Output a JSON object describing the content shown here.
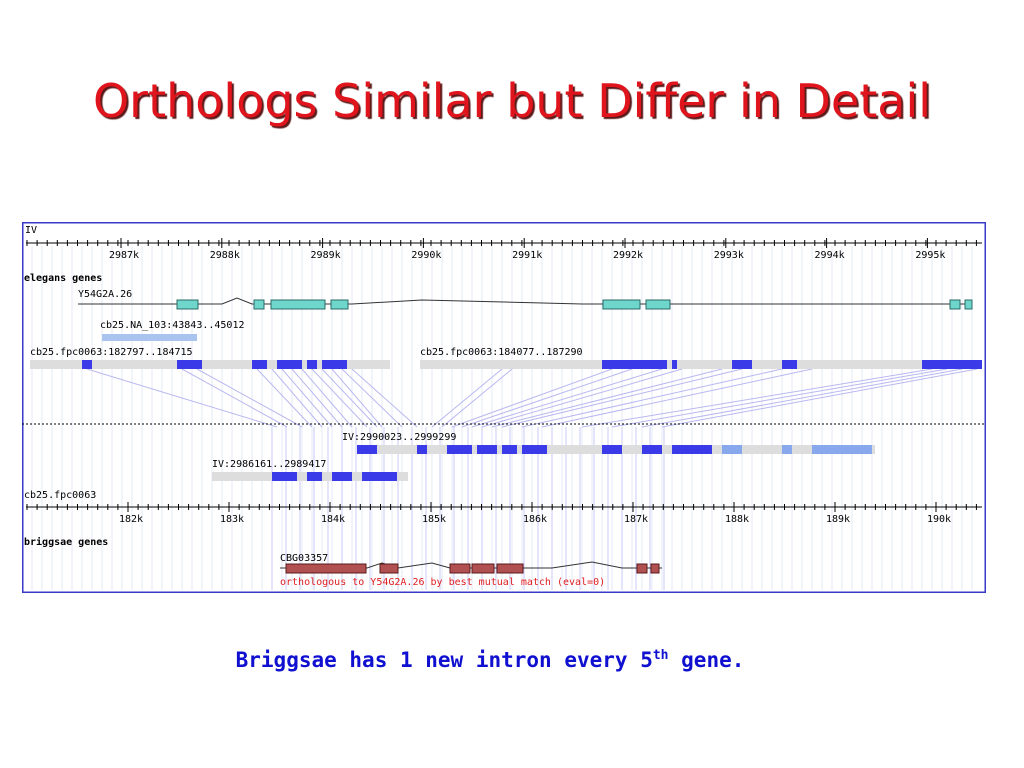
{
  "title": "Orthologs Similar but Differ in Detail",
  "browser": {
    "chromosome": "IV",
    "top_ruler": [
      "2987k",
      "2988k",
      "2989k",
      "2990k",
      "2991k",
      "2992k",
      "2993k",
      "2994k",
      "2995k"
    ],
    "elegans_track": "elegans genes",
    "elegans_gene": "Y54G2A.26",
    "alignments_top": [
      "cb25.NA_103:43843..45012",
      "cb25.fpc0063:182797..184715",
      "cb25.fpc0063:184077..187290"
    ],
    "alignments_bottom": [
      "IV:2990023..2999299",
      "IV:2986161..2989417"
    ],
    "contig": "cb25.fpc0063",
    "bottom_ruler": [
      "182k",
      "183k",
      "184k",
      "185k",
      "186k",
      "187k",
      "188k",
      "189k",
      "190k"
    ],
    "briggsae_track": "briggsae genes",
    "briggsae_gene": "CBG03357",
    "briggsae_note": "orthologous to Y54G2A.26 by best mutual match (eval=0)"
  },
  "caption": {
    "text": "Briggsae has 1 new intron every 5",
    "superscript": "th",
    "suffix": " gene."
  }
}
